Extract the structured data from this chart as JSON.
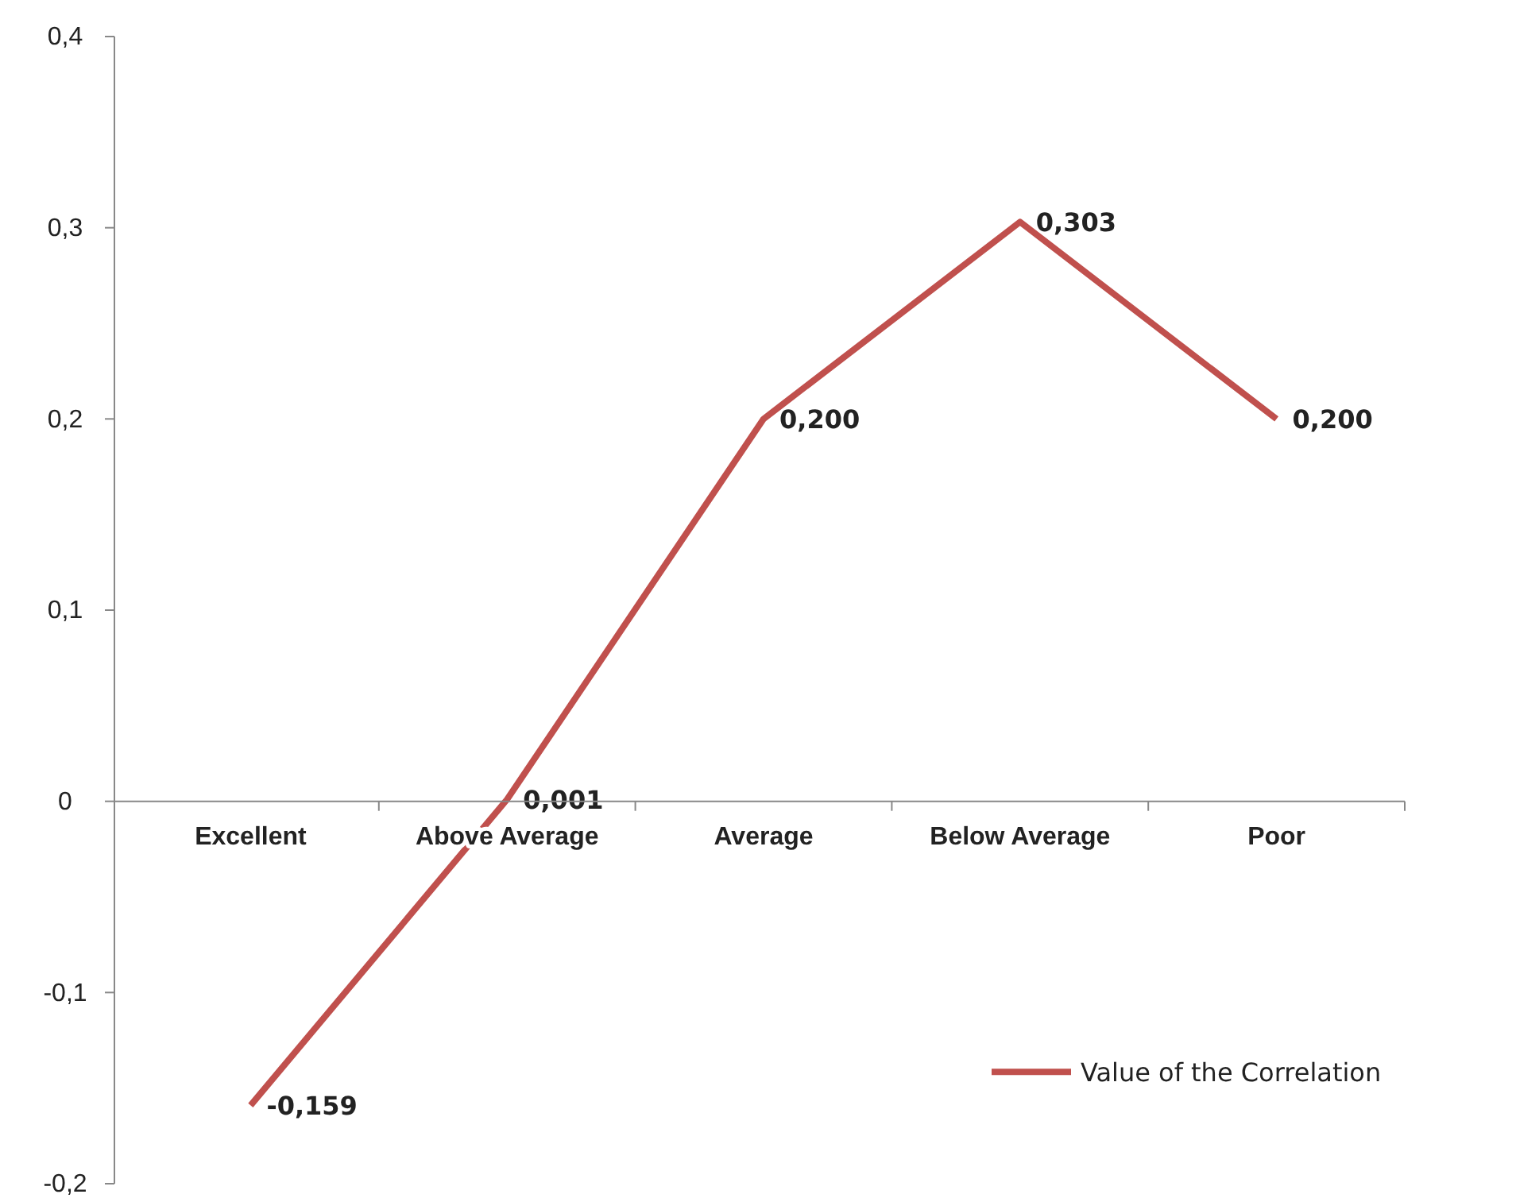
{
  "chart_data": {
    "type": "line",
    "categories": [
      "Excellent",
      "Above Average",
      "Average",
      "Below Average",
      "Poor"
    ],
    "series": [
      {
        "name": "Value of the Correlation",
        "color": "#c0504d",
        "values": [
          -0.159,
          0.001,
          0.2,
          0.303,
          0.2
        ],
        "value_labels": [
          "-0,159",
          "0,001",
          "0,200",
          "0,303",
          "0,200"
        ]
      }
    ],
    "ylim": [
      -0.2,
      0.4
    ],
    "yticks": [
      {
        "value": -0.2,
        "label": "-0,2"
      },
      {
        "value": -0.1,
        "label": "-0,1"
      },
      0,
      {
        "value": 0.1,
        "label": "0,1"
      },
      {
        "value": 0.2,
        "label": "0,2"
      },
      {
        "value": 0.3,
        "label": "0,3"
      },
      {
        "value": 0.4,
        "label": "0,4"
      }
    ],
    "grid": false,
    "legend": "bottom right",
    "marker": "none",
    "line_style": "solid"
  }
}
